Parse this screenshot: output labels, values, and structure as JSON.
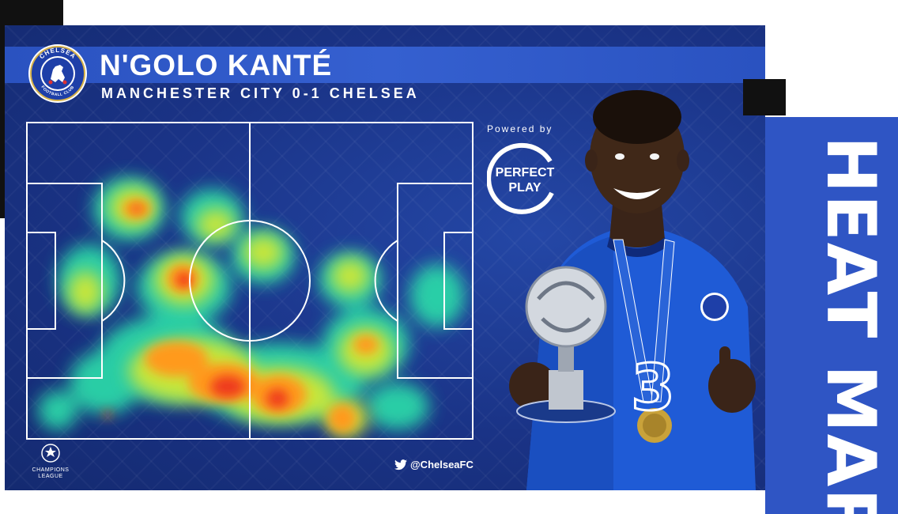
{
  "header": {
    "player_name": "N'GOLO KANTÉ",
    "match_line": "MANCHESTER CITY 0-1 CHELSEA"
  },
  "crest": {
    "top_text": "CHELSEA",
    "bottom_text": "FOOTBALL CLUB"
  },
  "sponsor": {
    "powered_by": "Powered by",
    "logo_line1": "PERFECT",
    "logo_line2": "PLAY"
  },
  "competition": {
    "line1": "CHAMPIONS",
    "line2": "LEAGUE"
  },
  "social": {
    "handle": "@ChelseaFC"
  },
  "side_label": "HEAT MAP",
  "colors": {
    "panel_blue": "#1a3386",
    "band_blue": "#3560d0",
    "side_blue": "#2f55c4",
    "white": "#ffffff"
  }
}
